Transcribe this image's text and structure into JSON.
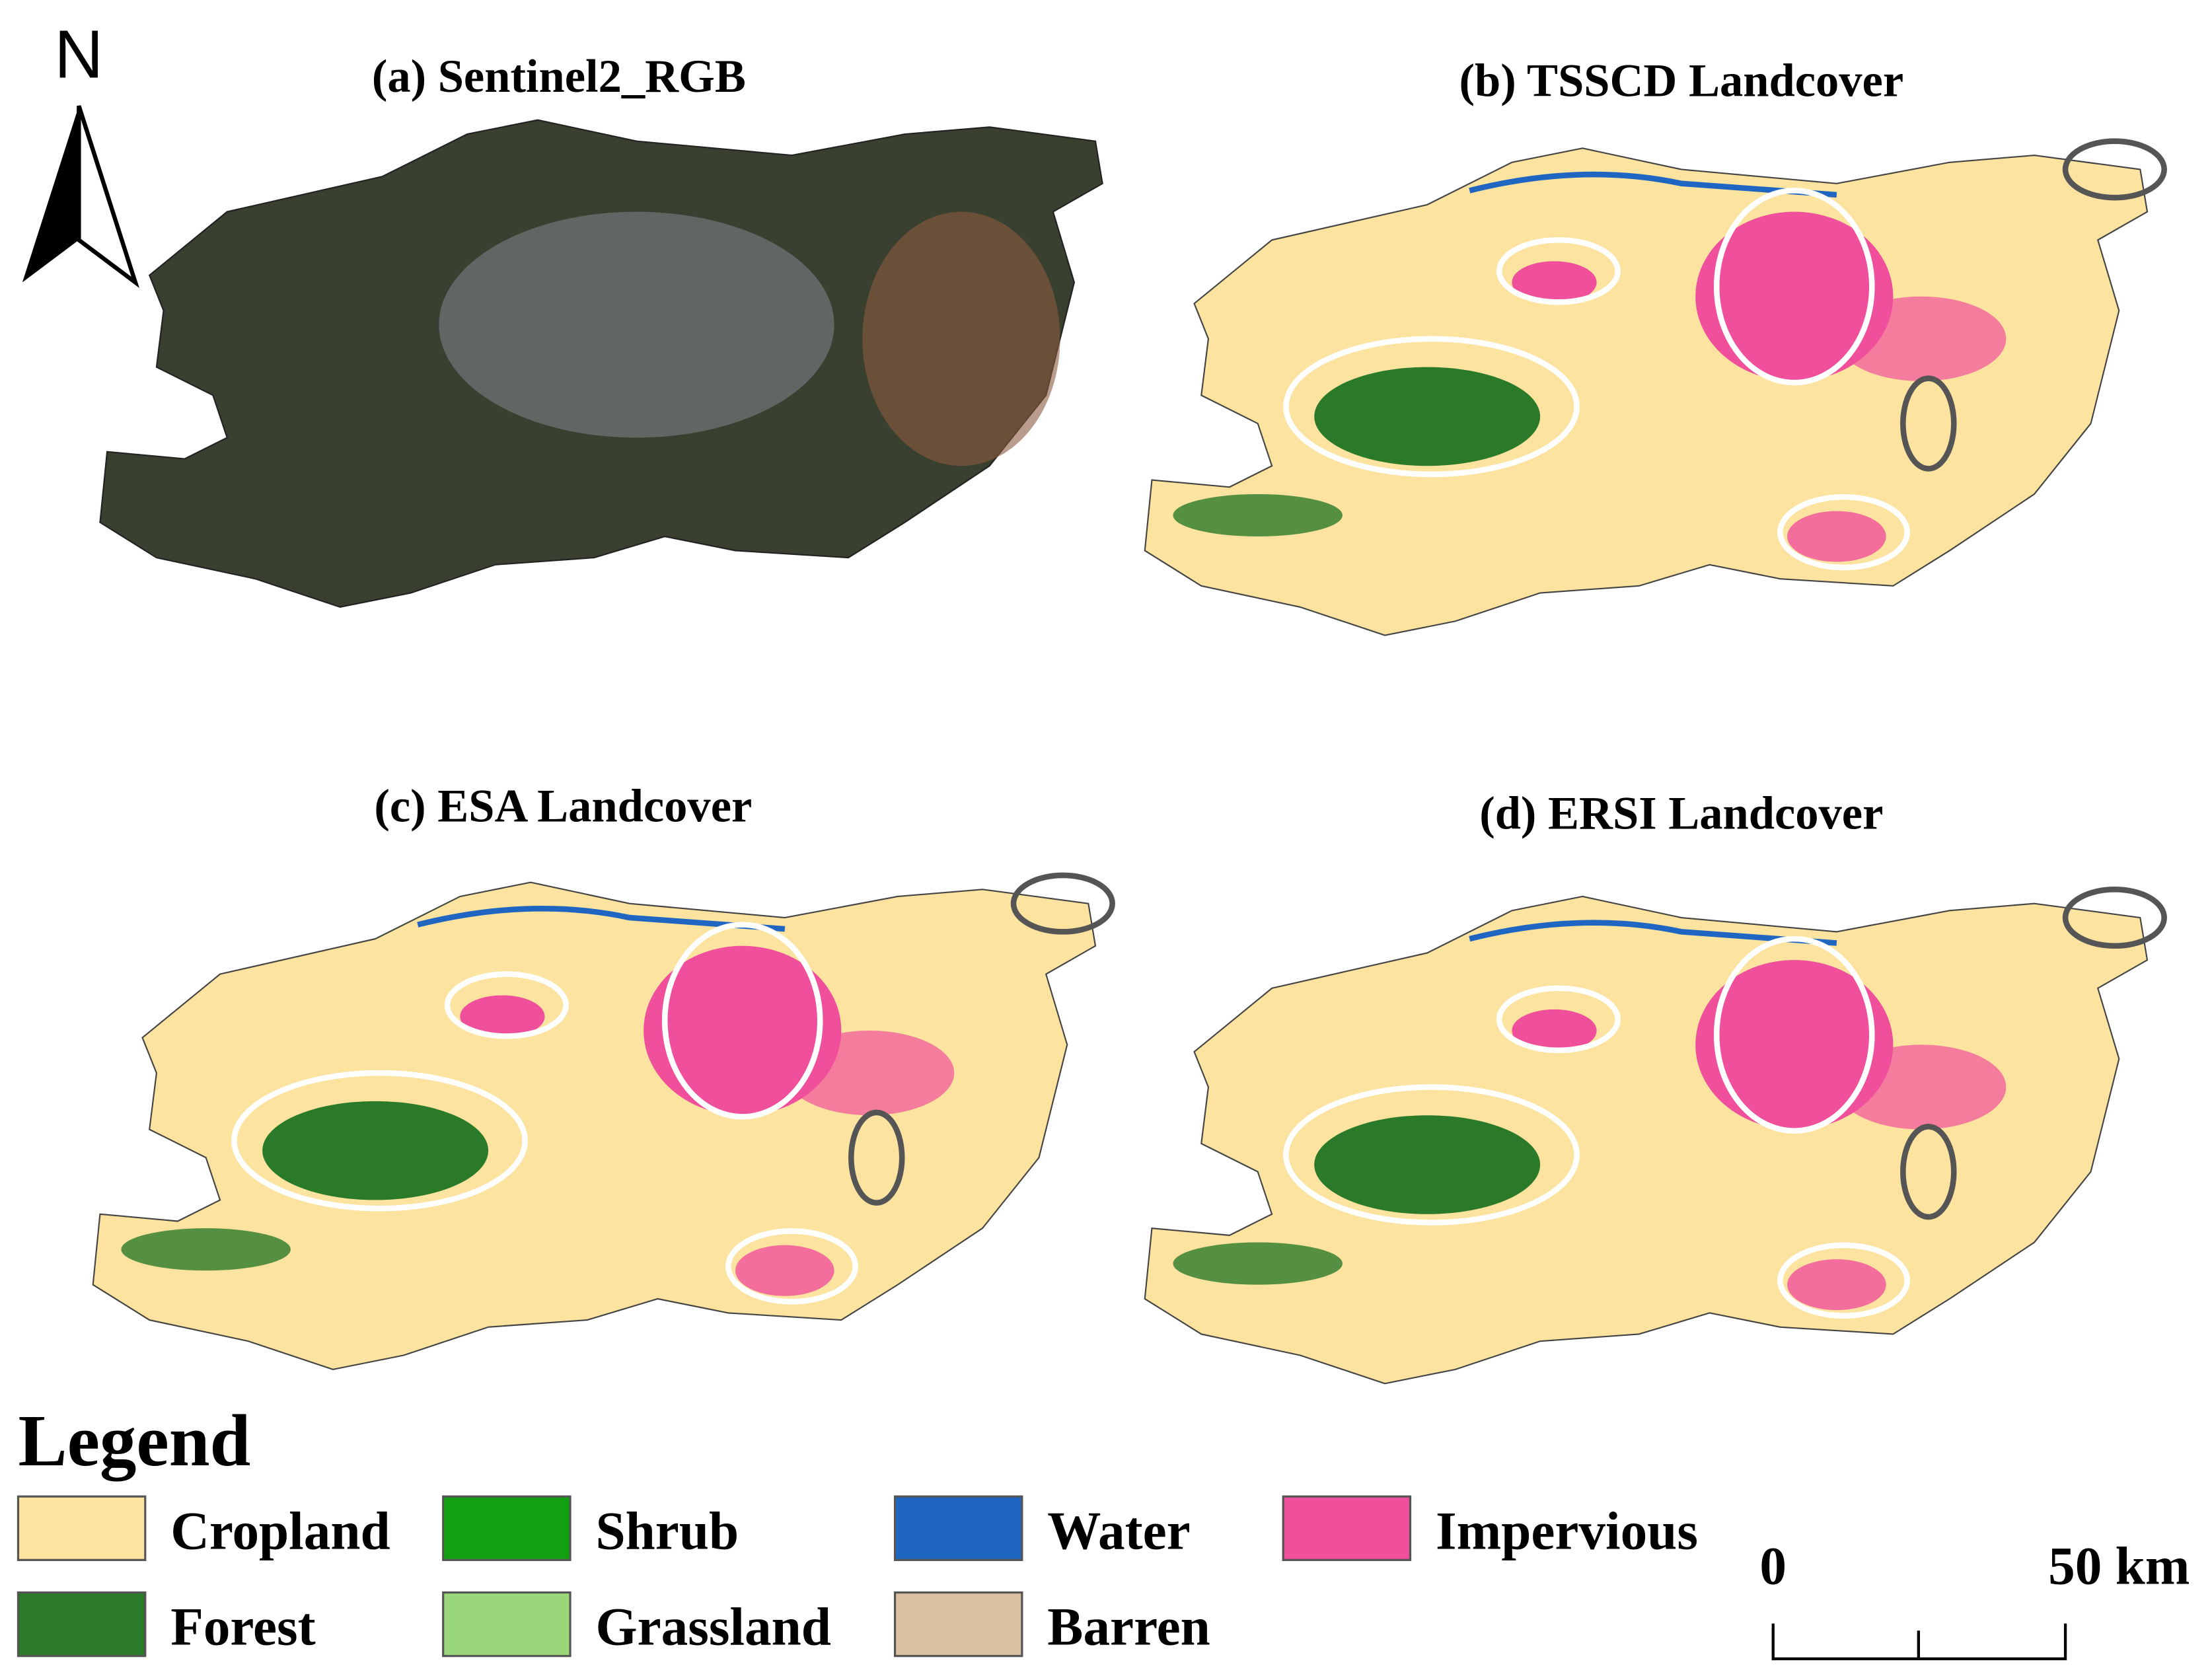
{
  "north_arrow": {
    "label": "N"
  },
  "panels": [
    {
      "title": "(a) Sentinel2_RGB"
    },
    {
      "title": "(b) TSSCD Landcover"
    },
    {
      "title": "(c) ESA Landcover"
    },
    {
      "title": "(d) ERSI Landcover"
    }
  ],
  "legend": {
    "title": "Legend",
    "items": [
      {
        "label": "Cropland",
        "color": "#fde3a0"
      },
      {
        "label": "Shrub",
        "color": "#12a012"
      },
      {
        "label": "Water",
        "color": "#1f66c2"
      },
      {
        "label": "Impervious",
        "color": "#f0509b"
      },
      {
        "label": "Forest",
        "color": "#2a7a2a"
      },
      {
        "label": "Grassland",
        "color": "#9ad67a"
      },
      {
        "label": "Barren",
        "color": "#d8c0a0"
      }
    ]
  },
  "scale_bar": {
    "labels": [
      "0",
      "50 km"
    ]
  }
}
